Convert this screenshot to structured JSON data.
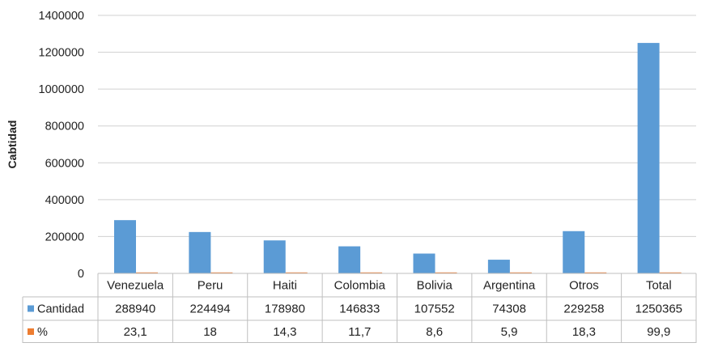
{
  "chart_data": {
    "type": "bar",
    "title": "",
    "ylabel": "Cabtidad",
    "xlabel": "",
    "ylim": [
      0,
      1400000
    ],
    "yticks": [
      0,
      200000,
      400000,
      600000,
      800000,
      1000000,
      1200000,
      1400000
    ],
    "ytick_labels": [
      "0",
      "200000",
      "400000",
      "600000",
      "800000",
      "1000000",
      "1200000",
      "1400000"
    ],
    "grid": true,
    "categories": [
      "Venezuela",
      "Peru",
      "Haiti",
      "Colombia",
      "Bolivia",
      "Argentina",
      "Otros",
      "Total"
    ],
    "series": [
      {
        "name": "Cantidad",
        "color": "#5b9bd5",
        "values": [
          288940,
          224494,
          178980,
          146833,
          107552,
          74308,
          229258,
          1250365
        ],
        "labels": [
          "288940",
          "224494",
          "178980",
          "146833",
          "107552",
          "74308",
          "229258",
          "1250365"
        ]
      },
      {
        "name": "%",
        "color": "#ed7d31",
        "values": [
          23.1,
          18,
          14.3,
          11.7,
          8.6,
          5.9,
          18.3,
          99.9
        ],
        "labels": [
          "23,1",
          "18",
          "14,3",
          "11,7",
          "8,6",
          "5,9",
          "18,3",
          "99,9"
        ]
      }
    ],
    "data_table": true
  }
}
